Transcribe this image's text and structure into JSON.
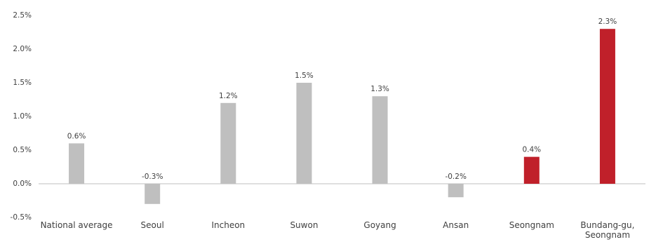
{
  "chart_data": {
    "type": "bar",
    "categories": [
      "National average",
      "Seoul",
      "Incheon",
      "Suwon",
      "Goyang",
      "Ansan",
      "Seongnam",
      "Bundang-gu, Seongnam"
    ],
    "values": [
      0.6,
      -0.3,
      1.2,
      1.5,
      1.3,
      -0.2,
      0.4,
      2.3
    ],
    "value_labels": [
      "0.6%",
      "-0.3%",
      "1.2%",
      "1.5%",
      "1.3%",
      "-0.2%",
      "0.4%",
      "2.3%"
    ],
    "colors": [
      "#bfbfbf",
      "#bfbfbf",
      "#bfbfbf",
      "#bfbfbf",
      "#bfbfbf",
      "#bfbfbf",
      "#c0202a",
      "#c0202a"
    ],
    "ylim": [
      -0.5,
      2.5
    ],
    "yticks": [
      {
        "value": -0.5,
        "label": "-0.5%"
      },
      {
        "value": 0,
        "label": "0.0%"
      },
      {
        "value": 0.5,
        "label": "0.5%"
      },
      {
        "value": 1,
        "label": "1.0%"
      },
      {
        "value": 1.5,
        "label": "1.5%"
      },
      {
        "value": 2,
        "label": "2.0%"
      },
      {
        "value": 2.5,
        "label": "2.5%"
      }
    ],
    "grid": false
  }
}
